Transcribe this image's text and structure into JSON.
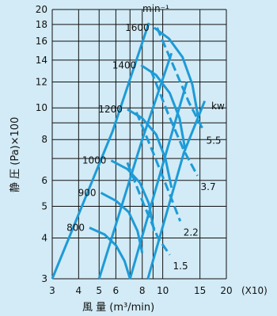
{
  "chart_data": {
    "type": "line",
    "title": "",
    "xlabel": "風 量 (m³/min)",
    "ylabel": "静 圧 (Pa)×100",
    "x_scale": "log",
    "y_scale": "log",
    "xlim": [
      3,
      20
    ],
    "ylim": [
      3,
      20
    ],
    "x_ticks": [
      3,
      4,
      5,
      6,
      7,
      8,
      9,
      10,
      15,
      20
    ],
    "x_tick_labels": [
      "3",
      "4",
      "5",
      "6",
      "8",
      "10",
      "15",
      "20"
    ],
    "x_tick_labeled_values": [
      3,
      4,
      5,
      6,
      8,
      10,
      15,
      20
    ],
    "x_multiplier": "(X10)",
    "y_ticks": [
      3,
      4,
      5,
      6,
      7,
      8,
      9,
      10,
      12,
      14,
      16,
      18,
      20
    ],
    "y_tick_labels": [
      "3",
      "4",
      "5",
      "6",
      "8",
      "10",
      "12",
      "14",
      "16",
      "18",
      "20"
    ],
    "y_tick_labeled_values": [
      3,
      4,
      5,
      6,
      8,
      10,
      12,
      14,
      16,
      18,
      20
    ],
    "speed_unit": "min⁻¹",
    "power_unit": "kw",
    "colors": {
      "line": "#1e9bd7",
      "background": "#d2ebf6",
      "grid": "#111111"
    },
    "grid": true,
    "speed_curves": [
      {
        "label": "800",
        "points": [
          [
            4.5,
            4.3
          ],
          [
            5.3,
            4.1
          ],
          [
            6.0,
            3.8
          ],
          [
            6.6,
            3.4
          ],
          [
            7.0,
            3.0
          ]
        ]
      },
      {
        "label": "900",
        "points": [
          [
            5.1,
            5.5
          ],
          [
            6.0,
            5.2
          ],
          [
            6.9,
            4.8
          ],
          [
            7.6,
            4.2
          ],
          [
            8.0,
            3.6
          ]
        ]
      },
      {
        "label": "1000",
        "points": [
          [
            5.7,
            6.9
          ],
          [
            6.8,
            6.5
          ],
          [
            7.8,
            5.9
          ],
          [
            8.6,
            5.1
          ],
          [
            9.1,
            4.2
          ]
        ]
      },
      {
        "label": "1200",
        "points": [
          [
            6.8,
            9.9
          ],
          [
            8.0,
            9.3
          ],
          [
            9.3,
            8.3
          ],
          [
            10.3,
            7.0
          ],
          [
            11.0,
            5.7
          ]
        ]
      },
      {
        "label": "1400",
        "points": [
          [
            7.9,
            13.5
          ],
          [
            9.3,
            12.6
          ],
          [
            10.8,
            11.1
          ],
          [
            12.0,
            9.3
          ],
          [
            12.8,
            7.4
          ]
        ]
      },
      {
        "label": "1600",
        "points": [
          [
            9.1,
            17.6
          ],
          [
            10.7,
            16.3
          ],
          [
            12.4,
            14.3
          ],
          [
            13.8,
            11.8
          ],
          [
            14.7,
            9.4
          ]
        ]
      }
    ],
    "system_curves": [
      {
        "points": [
          [
            3.0,
            3.0
          ],
          [
            5.8,
            8.5
          ],
          [
            8.6,
            18.2
          ]
        ]
      },
      {
        "points": [
          [
            5.0,
            3.0
          ],
          [
            8.0,
            8.0
          ],
          [
            11.0,
            14.7
          ]
        ]
      },
      {
        "points": [
          [
            7.0,
            3.0
          ],
          [
            10.0,
            6.7
          ],
          [
            13.0,
            12.0
          ]
        ]
      },
      {
        "points": [
          [
            8.5,
            3.0
          ],
          [
            12.6,
            7.3
          ],
          [
            15.8,
            10.5
          ]
        ]
      }
    ],
    "power_lines": [
      {
        "label": "1.5",
        "points": [
          [
            6.8,
            6.8
          ],
          [
            8.1,
            5.1
          ],
          [
            9.5,
            4.0
          ],
          [
            10.8,
            3.55
          ]
        ]
      },
      {
        "label": "2.2",
        "points": [
          [
            7.5,
            9.7
          ],
          [
            9.0,
            7.3
          ],
          [
            10.6,
            5.6
          ],
          [
            12.1,
            4.5
          ]
        ]
      },
      {
        "label": "3.7",
        "points": [
          [
            8.8,
            13.0
          ],
          [
            10.6,
            9.6
          ],
          [
            12.6,
            7.4
          ],
          [
            14.6,
            6.2
          ]
        ]
      },
      {
        "label": "5.5",
        "points": [
          [
            9.4,
            17.6
          ],
          [
            11.2,
            13.5
          ],
          [
            13.3,
            10.4
          ],
          [
            15.5,
            8.6
          ]
        ]
      }
    ]
  }
}
